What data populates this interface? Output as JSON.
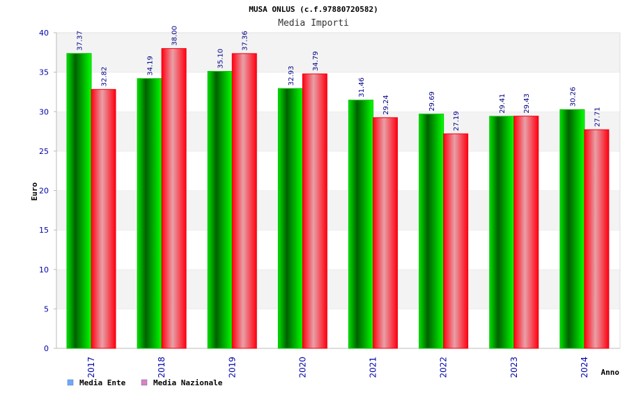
{
  "chart_data": {
    "type": "bar",
    "title": "MUSA ONLUS (c.f.97880720582)",
    "subtitle": "Media Importi",
    "xlabel": "Anno",
    "ylabel": "Euro",
    "ylim": [
      0,
      40
    ],
    "yticks": [
      "0",
      "5",
      "10",
      "15",
      "20",
      "25",
      "30",
      "35",
      "40"
    ],
    "categories": [
      "2017",
      "2018",
      "2019",
      "2020",
      "2021",
      "2022",
      "2023",
      "2024"
    ],
    "series": [
      {
        "name": "Media Ente",
        "values": [
          37.37,
          34.19,
          35.1,
          32.93,
          31.46,
          29.69,
          29.41,
          30.26
        ],
        "labels": [
          "37.37",
          "34.19",
          "35.10",
          "32.93",
          "31.46",
          "29.69",
          "29.41",
          "30.26"
        ],
        "color": "#00c000",
        "legend_color": "#6fa8ff"
      },
      {
        "name": "Media Nazionale",
        "values": [
          32.82,
          38.0,
          37.36,
          34.79,
          29.24,
          27.19,
          29.43,
          27.71
        ],
        "labels": [
          "32.82",
          "38.00",
          "37.36",
          "34.79",
          "29.24",
          "27.19",
          "29.43",
          "27.71"
        ],
        "color": "#f00010",
        "legend_color": "#e07fc0"
      }
    ],
    "grid": true,
    "legend_position": "bottom-left"
  }
}
